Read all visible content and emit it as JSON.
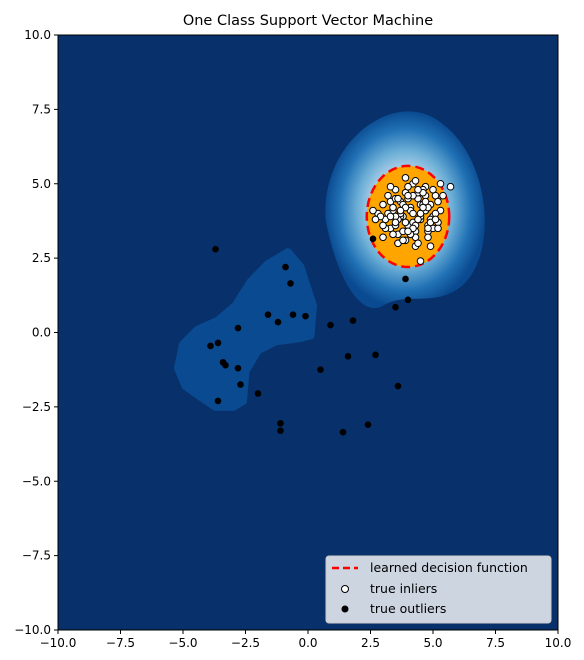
{
  "chart_data": {
    "type": "scatter",
    "title": "One Class Support Vector Machine",
    "xlim": [
      -10,
      10
    ],
    "ylim": [
      -10,
      10
    ],
    "xticks": [
      -10,
      -7.5,
      -5,
      -2.5,
      0,
      2.5,
      5,
      7.5,
      10
    ],
    "yticks": [
      -10,
      -7.5,
      -5,
      -2.5,
      0,
      2.5,
      5,
      7.5,
      10
    ],
    "xtick_labels": [
      "−10.0",
      "−7.5",
      "−5.0",
      "−2.5",
      "0.0",
      "2.5",
      "5.0",
      "7.5",
      "10.0"
    ],
    "ytick_labels": [
      "−10.0",
      "−7.5",
      "−5.0",
      "−2.5",
      "0.0",
      "2.5",
      "5.0",
      "7.5",
      "10.0"
    ],
    "grid": false,
    "legend_position": "lower-right",
    "legend": [
      {
        "label": "learned decision function",
        "marker": "dashed-line",
        "color": "#ff0000"
      },
      {
        "label": "true inliers",
        "marker": "circle",
        "color": "#ffffff",
        "edge": "#000000"
      },
      {
        "label": "true outliers",
        "marker": "circle",
        "color": "#000000"
      }
    ],
    "colors": {
      "background": "#08306b",
      "outer_region": "#0a4a90",
      "inner_region": "#ffa500",
      "decision_line": "#ff0000"
    },
    "decision_function": {
      "center": [
        4.0,
        3.9
      ],
      "radius": [
        1.65,
        1.7
      ]
    },
    "outer_blob": {
      "vertices": [
        [
          -5.2,
          -1.2
        ],
        [
          -5.0,
          -0.4
        ],
        [
          -4.4,
          0.1
        ],
        [
          -3.6,
          0.4
        ],
        [
          -2.9,
          0.9
        ],
        [
          -2.3,
          1.7
        ],
        [
          -1.6,
          2.3
        ],
        [
          -0.8,
          2.7
        ],
        [
          -0.3,
          2.2
        ],
        [
          0.2,
          0.9
        ],
        [
          0.1,
          -0.1
        ],
        [
          -0.4,
          -0.2
        ],
        [
          -1.3,
          -0.3
        ],
        [
          -2.0,
          -0.6
        ],
        [
          -2.5,
          -1.3
        ],
        [
          -2.6,
          -2.3
        ],
        [
          -3.0,
          -2.5
        ],
        [
          -3.7,
          -2.5
        ],
        [
          -4.4,
          -2.1
        ],
        [
          -4.9,
          -1.8
        ]
      ]
    },
    "inliers": {
      "x": [
        2.8,
        3.0,
        3.1,
        3.2,
        3.3,
        3.4,
        3.5,
        3.6,
        3.7,
        3.8,
        3.9,
        4.0,
        4.1,
        4.2,
        4.3,
        4.4,
        4.5,
        4.6,
        4.7,
        4.8,
        4.9,
        5.0,
        5.1,
        5.2,
        5.3,
        2.9,
        3.3,
        3.6,
        3.9,
        4.2,
        4.5,
        4.8,
        5.1,
        3.1,
        3.4,
        3.7,
        4.0,
        4.3,
        4.6,
        4.9,
        5.2,
        3.2,
        3.5,
        3.8,
        4.1,
        4.4,
        4.7,
        5.0,
        3.0,
        3.3,
        3.6,
        3.9,
        4.2,
        4.5,
        4.8,
        3.4,
        3.7,
        4.0,
        4.3,
        4.6,
        4.9,
        3.5,
        3.8,
        4.1,
        4.4,
        4.7,
        3.6,
        3.9,
        4.2,
        4.5,
        4.8,
        3.9,
        4.3,
        4.6,
        5.3,
        5.7,
        2.6,
        2.7,
        5.4,
        3.5,
        4.1,
        4.9,
        5.2,
        3.0,
        4.4,
        3.7,
        4.0,
        4.7,
        5.1,
        3.3,
        3.8,
        4.2,
        4.6,
        5.0,
        3.5,
        4.0,
        4.4,
        4.8,
        3.6,
        4.3
      ],
      "y": [
        4.0,
        4.3,
        3.8,
        4.6,
        3.5,
        4.1,
        4.8,
        3.3,
        4.4,
        3.9,
        4.7,
        3.6,
        4.2,
        5.0,
        3.4,
        4.5,
        3.8,
        4.1,
        4.9,
        3.6,
        4.3,
        3.9,
        4.6,
        3.7,
        4.1,
        3.9,
        4.9,
        3.0,
        5.2,
        3.7,
        4.3,
        3.4,
        4.0,
        3.5,
        4.2,
        3.9,
        4.5,
        3.2,
        4.8,
        3.8,
        4.4,
        4.0,
        3.6,
        4.3,
        3.3,
        4.7,
        4.1,
        3.5,
        3.6,
        4.4,
        3.8,
        3.1,
        4.6,
        3.9,
        4.2,
        3.3,
        4.0,
        4.9,
        3.6,
        4.3,
        3.7,
        4.5,
        3.4,
        4.1,
        3.8,
        4.6,
        3.0,
        4.2,
        3.5,
        4.0,
        3.2,
        3.7,
        2.9,
        4.7,
        5.0,
        4.9,
        4.1,
        3.8,
        4.6,
        3.9,
        3.3,
        2.9,
        3.5,
        3.2,
        4.8,
        4.1,
        3.4,
        4.4,
        3.8,
        3.9,
        3.1,
        4.0,
        4.2,
        4.8,
        3.7,
        4.6,
        3.0,
        3.5,
        4.5,
        5.1
      ],
      "edge_outliers": {
        "x": [
          4.5
        ],
        "y": [
          2.4
        ]
      }
    },
    "outliers": {
      "x": [
        -3.7,
        -0.9,
        -0.7,
        3.9,
        4.0,
        3.5,
        -1.6,
        -1.2,
        -0.6,
        -0.1,
        0.9,
        1.8,
        -2.8,
        -3.6,
        -3.9,
        -3.4,
        -3.3,
        -2.8,
        -2.7,
        -3.6,
        -2.0,
        1.6,
        2.7,
        3.6,
        0.5,
        -1.1,
        -1.1,
        1.4,
        2.4,
        2.6
      ],
      "y": [
        2.8,
        2.2,
        1.65,
        1.8,
        1.1,
        0.85,
        0.6,
        0.35,
        0.6,
        0.55,
        0.25,
        0.4,
        0.15,
        -0.35,
        -0.45,
        -1.0,
        -1.1,
        -1.2,
        -1.75,
        -2.3,
        -2.05,
        -0.8,
        -0.75,
        -1.8,
        -1.25,
        -3.05,
        -3.3,
        -3.35,
        -3.1,
        3.15
      ]
    }
  }
}
